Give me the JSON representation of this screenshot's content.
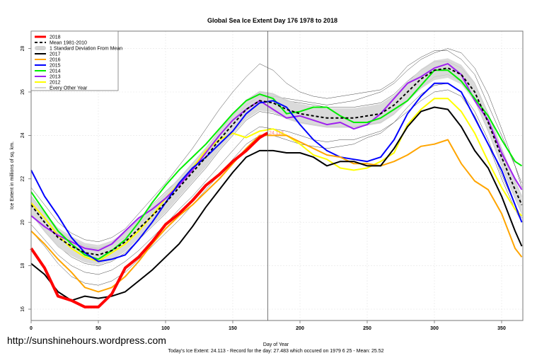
{
  "watermark": "http://sunshinehours.wordpress.com",
  "chart_data": {
    "type": "line",
    "title": "Global Sea Ice Extent Day 176 1978 to 2018",
    "xlabel": "Day of Year",
    "ylabel": "Ice Extent in millions of sq. km.",
    "subtitle": "Today's Ice Extent: 24.113  - Record for the day: 27.483 which occured on 1979 6 25  - Mean: 25.52",
    "today_label": "24.113",
    "marker_day": 176,
    "xlim": [
      0,
      365
    ],
    "ylim": [
      16,
      28.8
    ],
    "xticks": [
      0,
      50,
      100,
      150,
      200,
      250,
      300,
      350
    ],
    "yticks": [
      16,
      18,
      20,
      22,
      24,
      26,
      28
    ],
    "grid": true,
    "legend_position": "top-left",
    "x": [
      0,
      10,
      20,
      30,
      40,
      50,
      60,
      70,
      80,
      90,
      100,
      110,
      120,
      130,
      140,
      150,
      160,
      170,
      180,
      190,
      200,
      210,
      220,
      230,
      240,
      250,
      260,
      270,
      280,
      290,
      300,
      310,
      320,
      330,
      340,
      350,
      360,
      365
    ],
    "legend": [
      {
        "label": "2018",
        "color": "#ff0000",
        "style": "thick"
      },
      {
        "label": "Mean 1981-2010",
        "color": "#000000",
        "style": "dashed"
      },
      {
        "label": "1 Standard Deviation From Mean",
        "color": "#d3d3d3",
        "style": "band"
      },
      {
        "label": "2017",
        "color": "#000000",
        "style": "line"
      },
      {
        "label": "2016",
        "color": "#ffa500",
        "style": "line"
      },
      {
        "label": "2015",
        "color": "#0000ff",
        "style": "line"
      },
      {
        "label": "2014",
        "color": "#00ee00",
        "style": "line"
      },
      {
        "label": "2013",
        "color": "#a020f0",
        "style": "line"
      },
      {
        "label": "2012",
        "color": "#ffff00",
        "style": "line"
      },
      {
        "label": "Every Other Year",
        "color": "#aaaaaa",
        "style": "thin"
      }
    ],
    "mean": [
      20.8,
      20.0,
      19.3,
      18.9,
      18.6,
      18.5,
      18.7,
      19.1,
      19.7,
      20.3,
      20.9,
      21.6,
      22.3,
      23.0,
      23.8,
      24.5,
      25.2,
      25.6,
      25.5,
      25.2,
      25.0,
      24.9,
      24.8,
      24.8,
      24.8,
      24.9,
      25.0,
      25.4,
      26.0,
      26.6,
      27.0,
      27.1,
      26.8,
      26.0,
      24.6,
      23.0,
      21.5,
      20.8
    ],
    "std_dev": 0.45,
    "other_years": [
      [
        21.6,
        20.8,
        20.0,
        19.5,
        19.2,
        19.1,
        19.3,
        19.7,
        20.4,
        21.1,
        21.8,
        22.6,
        23.4,
        24.3,
        25.2,
        26.0,
        26.7,
        27.3,
        27.0,
        26.4,
        26.0,
        25.8,
        25.7,
        25.8,
        25.9,
        26.0,
        26.1,
        26.5,
        27.2,
        27.6,
        27.9,
        27.9,
        27.5,
        26.8,
        25.4,
        24.0,
        22.6,
        21.8
      ],
      [
        19.9,
        19.2,
        18.5,
        18.0,
        17.7,
        17.6,
        17.8,
        18.2,
        18.7,
        19.3,
        19.9,
        20.6,
        21.2,
        21.9,
        22.6,
        23.3,
        24.0,
        24.4,
        24.3,
        24.2,
        24.0,
        23.8,
        23.7,
        23.8,
        23.8,
        24.0,
        24.2,
        24.6,
        25.3,
        25.9,
        26.3,
        26.4,
        26.0,
        25.1,
        23.8,
        22.2,
        20.8,
        20.2
      ],
      [
        21.2,
        20.4,
        19.6,
        19.2,
        18.9,
        18.8,
        19.0,
        19.5,
        20.1,
        20.8,
        21.4,
        22.0,
        22.7,
        23.4,
        24.2,
        24.9,
        25.6,
        26.0,
        25.9,
        25.6,
        25.5,
        25.4,
        25.3,
        25.3,
        25.3,
        25.4,
        25.5,
        25.9,
        26.5,
        27.0,
        27.4,
        27.4,
        27.1,
        26.4,
        25.0,
        23.4,
        21.9,
        21.2
      ],
      [
        20.4,
        19.6,
        18.9,
        18.4,
        18.1,
        18.0,
        18.2,
        18.6,
        19.2,
        19.8,
        20.4,
        21.1,
        21.8,
        22.5,
        23.3,
        24.0,
        24.7,
        25.1,
        25.0,
        24.8,
        24.6,
        24.5,
        24.4,
        24.4,
        24.4,
        24.5,
        24.6,
        25.0,
        25.6,
        26.2,
        26.7,
        26.8,
        26.5,
        25.6,
        24.2,
        22.6,
        21.1,
        20.4
      ],
      [
        20.9,
        20.2,
        19.5,
        19.1,
        18.8,
        18.8,
        19.0,
        19.3,
        19.9,
        20.5,
        21.1,
        21.8,
        22.5,
        23.2,
        24.0,
        24.7,
        25.4,
        25.8,
        25.8,
        25.7,
        25.6,
        25.5,
        25.4,
        25.5,
        25.6,
        25.8,
        26.0,
        26.4,
        27.0,
        27.5,
        27.8,
        28.0,
        27.8,
        27.1,
        25.9,
        24.3,
        22.6,
        21.6
      ],
      [
        19.6,
        18.9,
        18.1,
        17.5,
        17.2,
        17.1,
        17.3,
        17.7,
        18.3,
        18.9,
        19.5,
        20.1,
        20.8,
        21.5,
        22.2,
        22.9,
        23.6,
        24.0,
        24.0,
        23.8,
        23.6,
        23.5,
        23.4,
        23.5,
        23.6,
        23.9,
        24.1,
        24.6,
        25.1,
        25.6,
        26.0,
        26.1,
        25.8,
        24.9,
        23.6,
        22.0,
        20.6,
        20.0
      ]
    ],
    "series": [
      {
        "name": "2012",
        "color": "#ffff00",
        "values": [
          20.9,
          20.2,
          19.4,
          18.8,
          18.4,
          18.2,
          18.6,
          19.0,
          19.6,
          20.3,
          21.1,
          21.8,
          22.5,
          23.3,
          23.8,
          24.1,
          23.9,
          24.2,
          24.3,
          24.0,
          23.6,
          23.1,
          22.9,
          22.5,
          22.4,
          22.5,
          22.8,
          23.2,
          24.5,
          25.2,
          25.7,
          25.7,
          25.1,
          24.1,
          22.8,
          21.6,
          20.6,
          20.3
        ]
      },
      {
        "name": "2013",
        "color": "#a020f0",
        "values": [
          20.3,
          19.8,
          19.4,
          19.1,
          18.8,
          18.7,
          19.0,
          19.6,
          20.2,
          20.6,
          21.1,
          21.7,
          22.4,
          23.2,
          24.0,
          24.7,
          25.2,
          25.6,
          25.2,
          24.8,
          24.9,
          24.7,
          24.5,
          24.6,
          24.3,
          24.5,
          25.0,
          25.7,
          26.4,
          26.7,
          27.1,
          27.3,
          26.8,
          25.6,
          24.7,
          23.2,
          22.0,
          21.5
        ]
      },
      {
        "name": "2014",
        "color": "#00ee00",
        "values": [
          21.4,
          20.5,
          19.6,
          19.0,
          18.5,
          18.3,
          18.7,
          19.2,
          20.0,
          20.9,
          21.7,
          22.4,
          23.0,
          23.6,
          24.3,
          25.0,
          25.6,
          25.9,
          25.7,
          25.0,
          25.1,
          25.3,
          25.3,
          24.9,
          24.6,
          24.6,
          24.8,
          25.2,
          25.6,
          26.3,
          27.0,
          27.0,
          26.5,
          25.7,
          24.9,
          23.8,
          22.8,
          22.6
        ]
      },
      {
        "name": "2015",
        "color": "#0000ff",
        "values": [
          22.4,
          21.2,
          20.3,
          19.3,
          18.6,
          18.2,
          18.3,
          18.5,
          19.2,
          20.0,
          20.9,
          21.8,
          22.5,
          23.0,
          23.6,
          24.2,
          25.0,
          25.5,
          25.6,
          25.3,
          24.5,
          23.8,
          23.3,
          23.0,
          22.9,
          22.8,
          23.0,
          23.8,
          25.0,
          25.8,
          26.4,
          26.4,
          26.0,
          24.8,
          23.6,
          22.4,
          20.8,
          20.0
        ]
      },
      {
        "name": "2016",
        "color": "#ffa500",
        "values": [
          19.6,
          19.0,
          18.3,
          17.7,
          17.0,
          16.8,
          17.0,
          17.5,
          18.2,
          19.0,
          19.7,
          20.3,
          20.8,
          21.4,
          22.0,
          22.7,
          23.4,
          24.0,
          24.0,
          24.0,
          23.7,
          23.4,
          23.1,
          23.0,
          22.7,
          22.7,
          22.6,
          22.8,
          23.1,
          23.5,
          23.6,
          23.8,
          22.7,
          21.9,
          21.5,
          20.4,
          18.8,
          18.4
        ]
      },
      {
        "name": "2017",
        "color": "#000000",
        "values": [
          18.1,
          17.6,
          16.8,
          16.4,
          16.6,
          16.5,
          16.6,
          16.8,
          17.3,
          17.8,
          18.4,
          19.0,
          19.8,
          20.7,
          21.5,
          22.3,
          23.0,
          23.3,
          23.3,
          23.2,
          23.2,
          23.0,
          22.6,
          22.8,
          22.8,
          22.6,
          22.6,
          23.4,
          24.4,
          25.1,
          25.3,
          25.2,
          24.4,
          23.3,
          22.5,
          21.2,
          19.6,
          18.9
        ]
      },
      {
        "name": "2018",
        "color": "#ff0000",
        "x": [
          0,
          10,
          20,
          30,
          40,
          50,
          60,
          70,
          80,
          90,
          100,
          110,
          120,
          130,
          140,
          150,
          160,
          170,
          176
        ],
        "values": [
          18.8,
          17.9,
          16.6,
          16.4,
          16.1,
          16.1,
          16.7,
          17.9,
          18.4,
          19.1,
          19.9,
          20.4,
          21.0,
          21.7,
          22.2,
          22.8,
          23.3,
          23.9,
          24.113
        ]
      }
    ]
  }
}
